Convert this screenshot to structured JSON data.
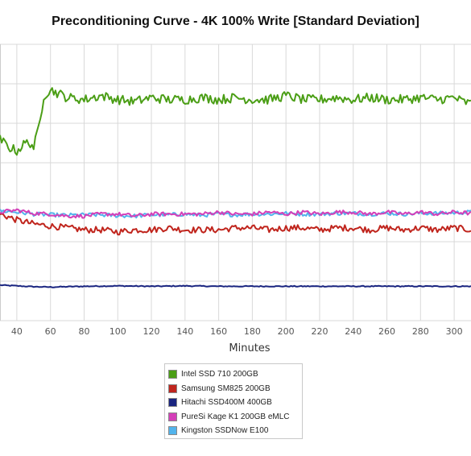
{
  "chart_data": {
    "type": "line",
    "title": "Preconditioning Curve - 4K 100% Write [Standard Deviation]",
    "xlabel": "Minutes",
    "ylabel": "",
    "xlim": [
      30,
      310
    ],
    "ylim": [
      0,
      7
    ],
    "x_ticks": [
      40,
      60,
      80,
      100,
      120,
      140,
      160,
      180,
      200,
      220,
      240,
      260,
      280,
      300
    ],
    "grid": true,
    "legend_position": "bottom-center",
    "series": [
      {
        "name": "Intel SSD 710 200GB",
        "color": "#4b9e16",
        "x": [
          30,
          35,
          40,
          45,
          48,
          50,
          52,
          54,
          56,
          60,
          70,
          80,
          90,
          100,
          110,
          120,
          130,
          140,
          150,
          160,
          170,
          180,
          190,
          200,
          210,
          220,
          230,
          240,
          250,
          260,
          270,
          280,
          290,
          300,
          305,
          310
        ],
        "values": [
          4.6,
          4.4,
          4.3,
          4.5,
          4.5,
          4.4,
          4.7,
          5.1,
          5.7,
          5.85,
          5.65,
          5.6,
          5.7,
          5.6,
          5.55,
          5.65,
          5.6,
          5.6,
          5.65,
          5.6,
          5.65,
          5.6,
          5.6,
          5.7,
          5.6,
          5.6,
          5.65,
          5.6,
          5.65,
          5.6,
          5.6,
          5.65,
          5.6,
          5.65,
          5.55,
          5.5
        ]
      },
      {
        "name": "Samsung SM825 200GB",
        "color": "#c0251d",
        "x": [
          30,
          40,
          50,
          60,
          70,
          80,
          90,
          100,
          110,
          120,
          130,
          140,
          150,
          160,
          170,
          180,
          190,
          200,
          210,
          220,
          230,
          240,
          250,
          260,
          270,
          280,
          290,
          300,
          310
        ],
        "values": [
          2.7,
          2.55,
          2.45,
          2.4,
          2.35,
          2.3,
          2.3,
          2.25,
          2.3,
          2.3,
          2.35,
          2.3,
          2.3,
          2.3,
          2.35,
          2.35,
          2.3,
          2.35,
          2.35,
          2.3,
          2.35,
          2.35,
          2.3,
          2.35,
          2.3,
          2.35,
          2.3,
          2.35,
          2.3
        ]
      },
      {
        "name": "Hitachi SSD400M 400GB",
        "color": "#1a2580",
        "x": [
          30,
          40,
          50,
          60,
          70,
          80,
          100,
          120,
          140,
          160,
          180,
          200,
          220,
          240,
          260,
          280,
          300,
          310
        ],
        "values": [
          0.9,
          0.88,
          0.86,
          0.85,
          0.86,
          0.87,
          0.88,
          0.87,
          0.88,
          0.87,
          0.87,
          0.87,
          0.87,
          0.87,
          0.87,
          0.87,
          0.87,
          0.87
        ]
      },
      {
        "name": "PureSi Kage K1 200GB eMLC",
        "color": "#d43fb8",
        "x": [
          30,
          40,
          50,
          60,
          70,
          80,
          90,
          100,
          110,
          120,
          130,
          140,
          150,
          160,
          170,
          180,
          190,
          200,
          210,
          220,
          230,
          240,
          250,
          260,
          270,
          280,
          290,
          300,
          310
        ],
        "values": [
          2.75,
          2.8,
          2.72,
          2.7,
          2.65,
          2.65,
          2.7,
          2.7,
          2.65,
          2.7,
          2.7,
          2.7,
          2.7,
          2.75,
          2.7,
          2.7,
          2.75,
          2.7,
          2.75,
          2.7,
          2.75,
          2.75,
          2.7,
          2.75,
          2.7,
          2.75,
          2.7,
          2.75,
          2.72
        ]
      },
      {
        "name": "Kingston SSDNow E100",
        "color": "#52b4ec",
        "x": [
          30,
          40,
          50,
          60,
          70,
          80,
          90,
          100,
          110,
          120,
          130,
          140,
          150,
          160,
          170,
          180,
          190,
          200,
          210,
          220,
          230,
          240,
          250,
          260,
          270,
          280,
          290,
          300,
          310
        ],
        "values": [
          2.78,
          2.75,
          2.7,
          2.68,
          2.67,
          2.68,
          2.68,
          2.66,
          2.65,
          2.68,
          2.68,
          2.7,
          2.67,
          2.7,
          2.68,
          2.7,
          2.7,
          2.72,
          2.7,
          2.7,
          2.72,
          2.72,
          2.7,
          2.72,
          2.7,
          2.72,
          2.72,
          2.73,
          2.75
        ]
      }
    ]
  }
}
